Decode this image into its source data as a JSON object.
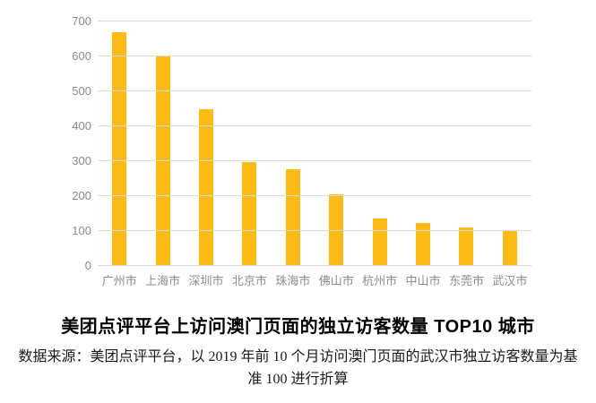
{
  "chart_data": {
    "type": "bar",
    "title": "美团点评平台上访问澳门页面的独立访客数量 TOP10 城市",
    "categories": [
      "广州市",
      "上海市",
      "深圳市",
      "北京市",
      "珠海市",
      "佛山市",
      "杭州市",
      "中山市",
      "东莞市",
      "武汉市"
    ],
    "values": [
      670,
      600,
      450,
      298,
      278,
      206,
      135,
      122,
      110,
      100
    ],
    "xlabel": "",
    "ylabel": "",
    "ylim": [
      0,
      700
    ],
    "yticks": [
      0,
      100,
      200,
      300,
      400,
      500,
      600,
      700
    ],
    "grid": true,
    "legend": false,
    "bar_color": "#fdbc15",
    "gridline_color": "#dbdbdb",
    "axis_label_color": "#8c8c8c"
  },
  "footnote": {
    "line1": "数据来源：美团点评平台，以 2019 年前 10 个月访问澳门页面的武汉市独立访客数量为基",
    "line2": "准 100 进行折算"
  }
}
